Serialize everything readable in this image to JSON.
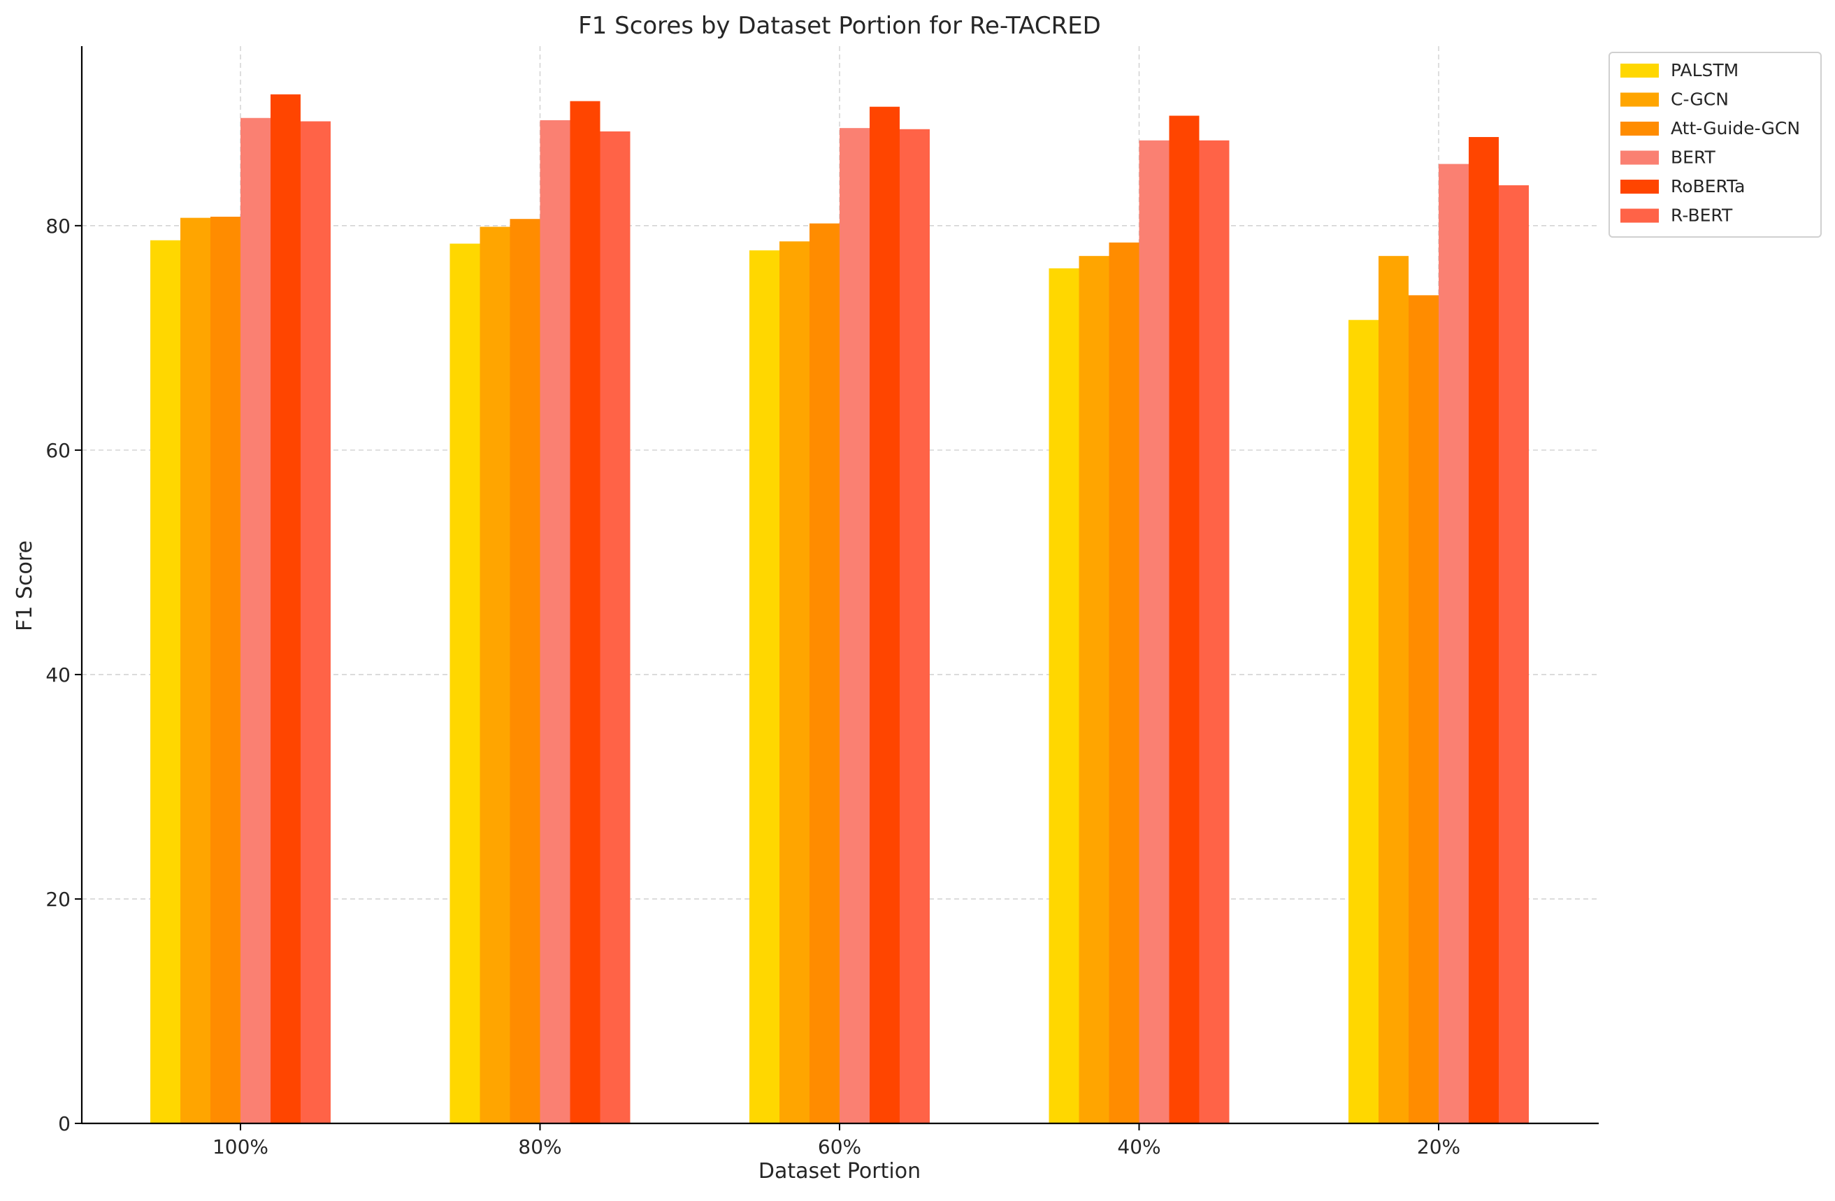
{
  "chart_data": {
    "type": "bar",
    "title": "F1 Scores by Dataset Portion for Re-TACRED",
    "xlabel": "Dataset Portion",
    "ylabel": "F1 Score",
    "categories": [
      "100%",
      "80%",
      "60%",
      "40%",
      "20%"
    ],
    "ylim": [
      0,
      96
    ],
    "yticks": [
      0,
      20,
      40,
      60,
      80
    ],
    "grid": true,
    "legend_position": "top-right, outside plot",
    "series": [
      {
        "name": "PALSTM",
        "color": "#FFD700",
        "values": [
          78.7,
          78.4,
          77.8,
          76.2,
          71.6
        ]
      },
      {
        "name": "C-GCN",
        "color": "#FFA500",
        "values": [
          80.7,
          79.9,
          78.6,
          77.3,
          77.3
        ]
      },
      {
        "name": "Att-Guide-GCN",
        "color": "#FF8C00",
        "values": [
          80.8,
          80.6,
          80.2,
          78.5,
          73.8
        ]
      },
      {
        "name": "BERT",
        "color": "#FA8072",
        "values": [
          89.6,
          89.4,
          88.7,
          87.6,
          85.5
        ]
      },
      {
        "name": "RoBERTa",
        "color": "#FF4500",
        "values": [
          91.7,
          91.1,
          90.6,
          89.8,
          87.9
        ]
      },
      {
        "name": "R-BERT",
        "color": "#FF6347",
        "values": [
          89.3,
          88.4,
          88.6,
          87.6,
          83.6
        ]
      }
    ]
  }
}
